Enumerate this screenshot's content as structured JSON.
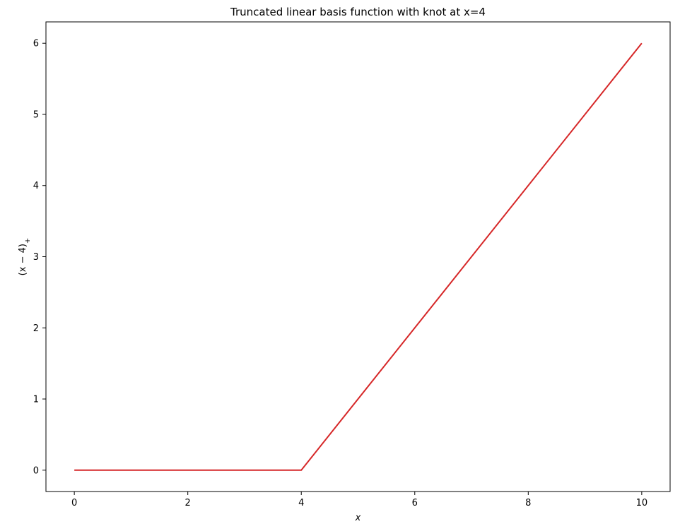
{
  "chart_data": {
    "type": "line",
    "title": "Truncated linear basis function with knot at x=4",
    "xlabel": "x",
    "ylabel": "(x − 4)",
    "ylabel_subscript": "+",
    "xlim": [
      -0.5,
      10.5
    ],
    "ylim": [
      -0.3,
      6.3
    ],
    "xticks": [
      0,
      2,
      4,
      6,
      8,
      10
    ],
    "yticks": [
      0,
      1,
      2,
      3,
      4,
      5,
      6
    ],
    "grid": false,
    "legend": "none",
    "series": [
      {
        "color": "#d62728",
        "x": [
          0,
          4,
          10
        ],
        "y": [
          0,
          0,
          6
        ]
      }
    ]
  }
}
